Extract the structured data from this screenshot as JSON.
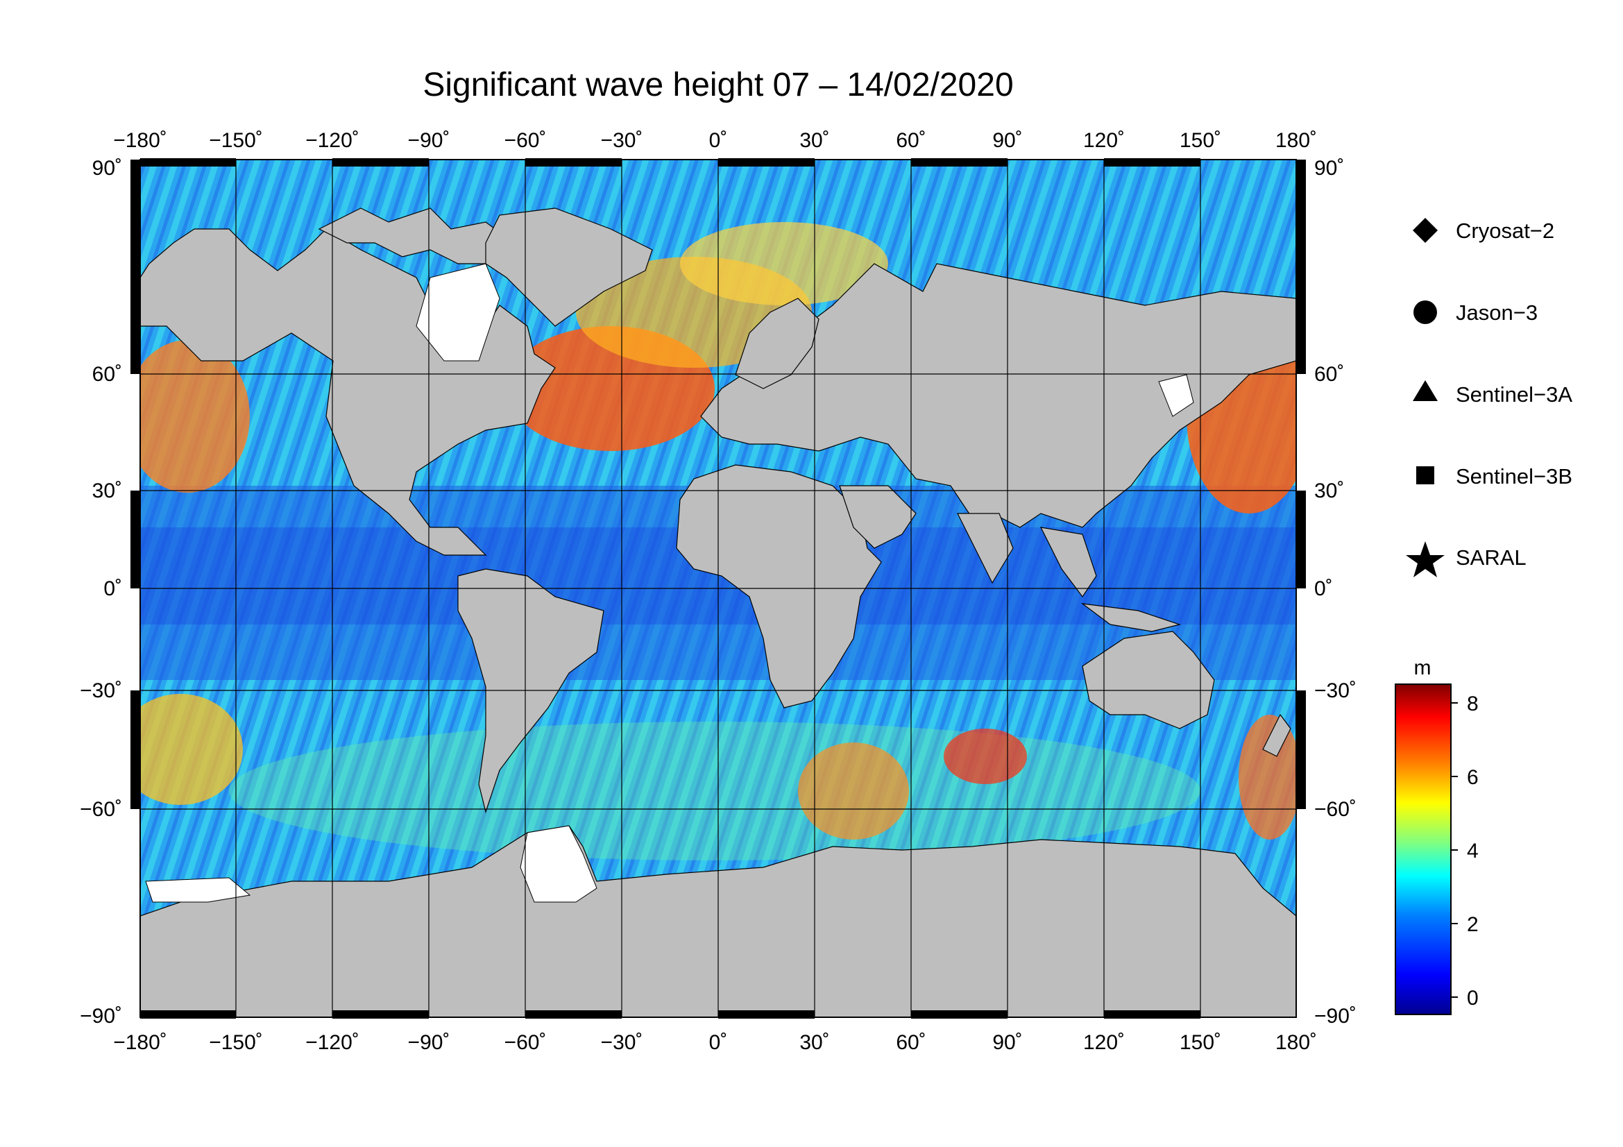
{
  "title": "Significant wave height 07 – 14/02/2020",
  "axes": {
    "lon_ticks": [
      "−180˚",
      "−150˚",
      "−120˚",
      "−90˚",
      "−60˚",
      "−30˚",
      "0˚",
      "30˚",
      "60˚",
      "90˚",
      "120˚",
      "150˚",
      "180˚"
    ],
    "lat_ticks_left": [
      "90˚",
      "60˚",
      "30˚",
      "0˚",
      "−30˚",
      "−60˚",
      "−90˚"
    ],
    "lat_ticks_right": [
      "90˚",
      "60˚",
      "30˚",
      "0˚",
      "−30˚",
      "−60˚",
      "−90˚"
    ]
  },
  "legend": {
    "items": [
      {
        "label": "Cryosat−2",
        "marker": "diamond"
      },
      {
        "label": "Jason−3",
        "marker": "circle"
      },
      {
        "label": "Sentinel−3A",
        "marker": "triangle"
      },
      {
        "label": "Sentinel−3B",
        "marker": "square"
      },
      {
        "label": "SARAL",
        "marker": "star"
      }
    ]
  },
  "colorbar": {
    "unit": "m",
    "ticks": [
      "8",
      "6",
      "4",
      "2",
      "0"
    ],
    "colors": [
      "#00008f",
      "#0000ff",
      "#0080ff",
      "#00ffff",
      "#80ff80",
      "#ffff00",
      "#ff8000",
      "#ff0000",
      "#800000"
    ]
  },
  "map": {
    "land_color": "#bebebe",
    "ice_color": "#ffffff",
    "projection": "equirectangular",
    "lon_range": [
      -180,
      180
    ],
    "lat_range": [
      -90,
      90
    ]
  }
}
